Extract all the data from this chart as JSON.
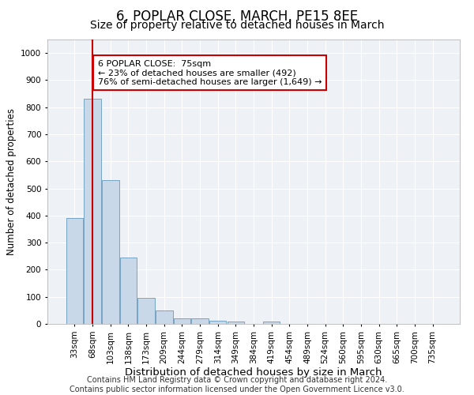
{
  "title1": "6, POPLAR CLOSE, MARCH, PE15 8EE",
  "title2": "Size of property relative to detached houses in March",
  "xlabel": "Distribution of detached houses by size in March",
  "ylabel": "Number of detached properties",
  "bar_labels": [
    "33sqm",
    "68sqm",
    "103sqm",
    "138sqm",
    "173sqm",
    "209sqm",
    "244sqm",
    "279sqm",
    "314sqm",
    "349sqm",
    "384sqm",
    "419sqm",
    "454sqm",
    "489sqm",
    "524sqm",
    "560sqm",
    "595sqm",
    "630sqm",
    "665sqm",
    "700sqm",
    "735sqm"
  ],
  "bar_values": [
    390,
    830,
    530,
    245,
    95,
    50,
    20,
    20,
    12,
    10,
    0,
    10,
    0,
    0,
    0,
    0,
    0,
    0,
    0,
    0,
    0
  ],
  "bar_color": "#c8d8e8",
  "bar_edge_color": "#6699bb",
  "vline_x": 1,
  "vline_color": "#cc0000",
  "ylim": [
    0,
    1050
  ],
  "yticks": [
    0,
    100,
    200,
    300,
    400,
    500,
    600,
    700,
    800,
    900,
    1000
  ],
  "annotation_box_text": "6 POPLAR CLOSE:  75sqm\n← 23% of detached houses are smaller (492)\n76% of semi-detached houses are larger (1,649) →",
  "annotation_box_color": "#cc0000",
  "footer_text": "Contains HM Land Registry data © Crown copyright and database right 2024.\nContains public sector information licensed under the Open Government Licence v3.0.",
  "bg_color": "#eef2f7",
  "grid_color": "#ffffff",
  "title1_fontsize": 12,
  "title2_fontsize": 10,
  "xlabel_fontsize": 9.5,
  "ylabel_fontsize": 8.5,
  "tick_fontsize": 7.5,
  "annotation_fontsize": 8,
  "footer_fontsize": 7
}
